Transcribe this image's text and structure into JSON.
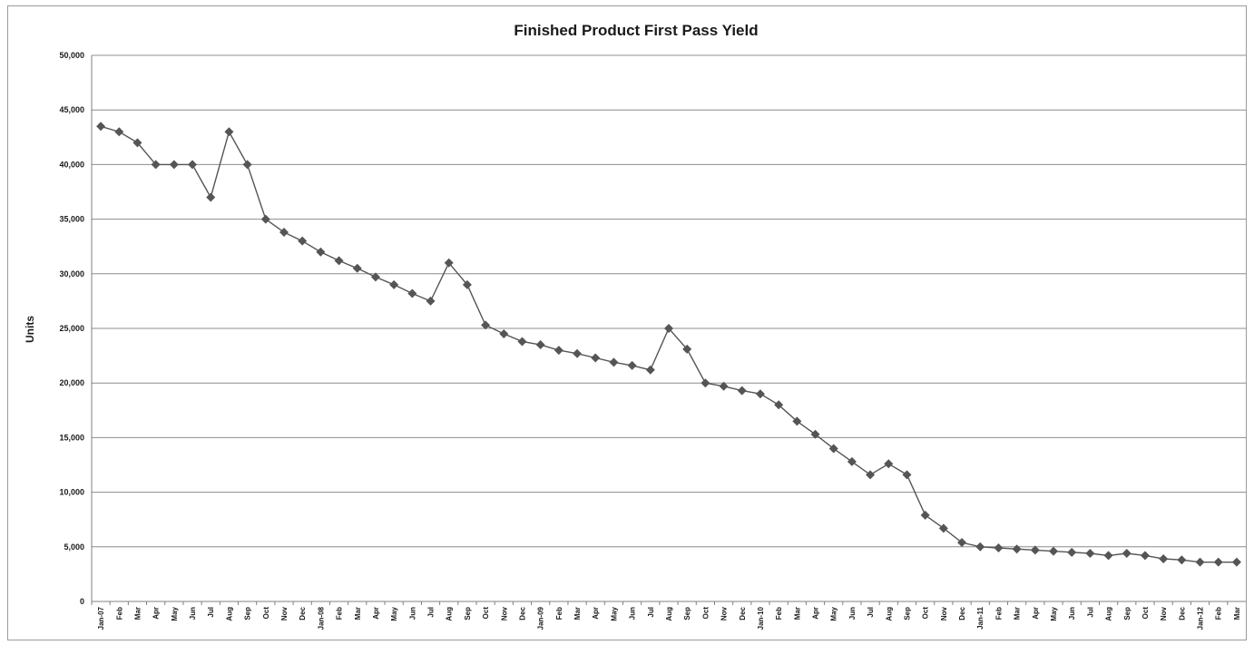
{
  "chart_data": {
    "type": "line",
    "title": "Finished Product First Pass Yield",
    "ylabel": "Units",
    "xlabel": "",
    "ylim": [
      0,
      50000
    ],
    "y_ticks": [
      "0",
      "5,000",
      "10,000",
      "15,000",
      "20,000",
      "25,000",
      "30,000",
      "35,000",
      "40,000",
      "45,000",
      "50,000"
    ],
    "grid": "horizontal",
    "legend": "none",
    "categories": [
      "Jan-07",
      "Feb",
      "Mar",
      "Apr",
      "May",
      "Jun",
      "Jul",
      "Aug",
      "Sep",
      "Oct",
      "Nov",
      "Dec",
      "Jan-08",
      "Feb",
      "Mar",
      "Apr",
      "May",
      "Jun",
      "Jul",
      "Aug",
      "Sep",
      "Oct",
      "Nov",
      "Dec",
      "Jan-09",
      "Feb",
      "Mar",
      "Apr",
      "May",
      "Jun",
      "Jul",
      "Aug",
      "Sep",
      "Oct",
      "Nov",
      "Dec",
      "Jan-10",
      "Feb",
      "Mar",
      "Apr",
      "May",
      "Jun",
      "Jul",
      "Aug",
      "Sep",
      "Oct",
      "Nov",
      "Dec",
      "Jan-11",
      "Feb",
      "Mar",
      "Apr",
      "May",
      "Jun",
      "Jul",
      "Aug",
      "Sep",
      "Oct",
      "Nov",
      "Dec",
      "Jan-12",
      "Feb",
      "Mar"
    ],
    "series": [
      {
        "color": "#555555",
        "values": [
          43500,
          43000,
          42000,
          40000,
          40000,
          40000,
          37000,
          43000,
          40000,
          35000,
          33800,
          33000,
          32000,
          31200,
          30500,
          29700,
          29000,
          28200,
          27500,
          31000,
          29000,
          25300,
          24500,
          23800,
          23500,
          23000,
          22700,
          22300,
          21900,
          21600,
          21200,
          25000,
          23100,
          20000,
          19700,
          19300,
          19000,
          18000,
          16500,
          15300,
          14000,
          12800,
          11600,
          12600,
          11600,
          7900,
          6700,
          5400,
          5000,
          4900,
          4800,
          4700,
          4600,
          4500,
          4400,
          4200,
          4400,
          4200,
          3900,
          3800,
          3600,
          3600,
          3600
        ]
      }
    ]
  }
}
